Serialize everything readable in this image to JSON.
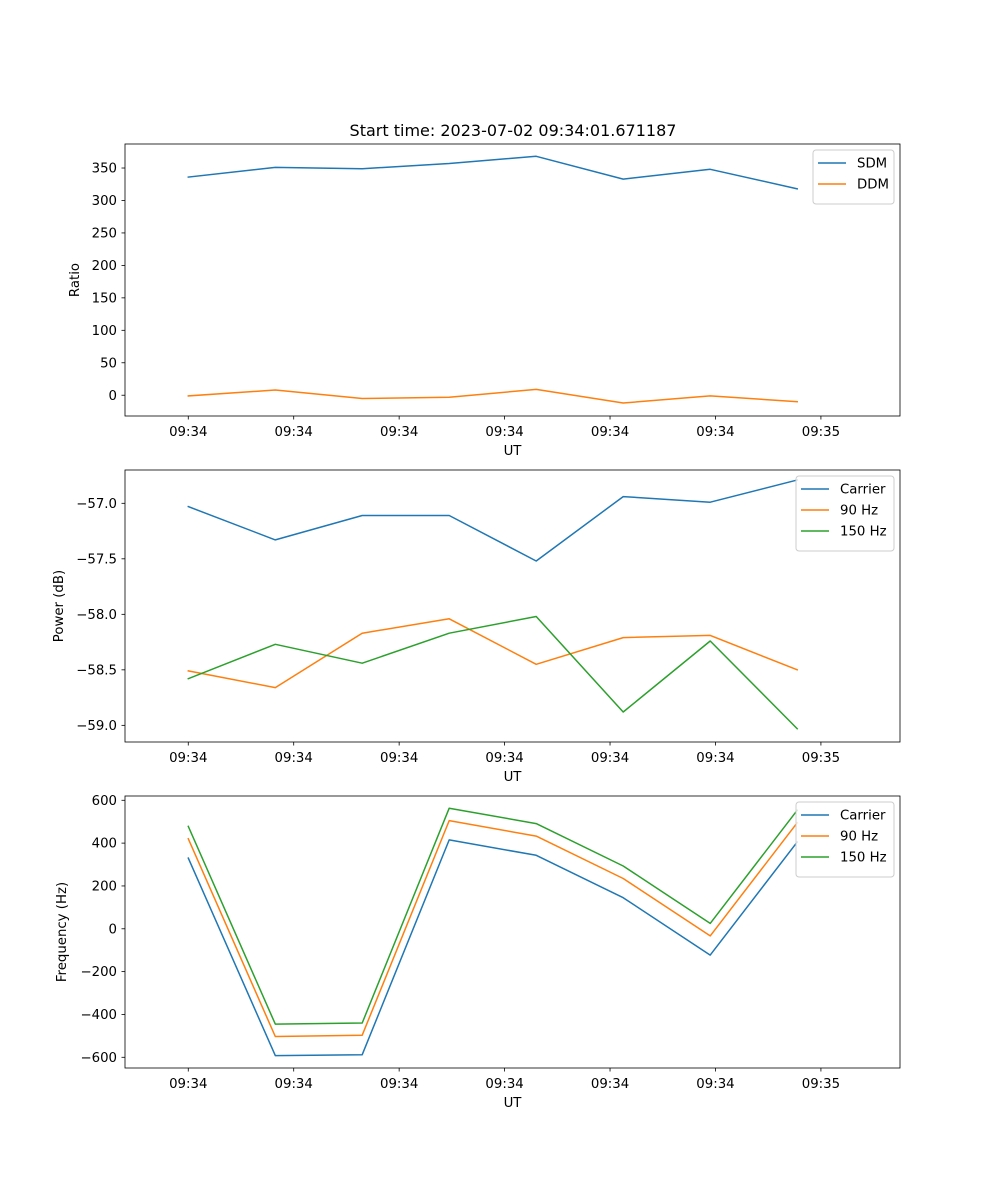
{
  "figure_title": "Start time: 2023-07-02 09:34:01.671187",
  "chart_data": [
    {
      "type": "line",
      "title": "Start time: 2023-07-02 09:34:01.671187",
      "xlabel": "UT",
      "ylabel": "Ratio",
      "x_tick_labels": [
        "09:34",
        "09:34",
        "09:34",
        "09:34",
        "09:34",
        "09:34",
        "09:35"
      ],
      "xlim": [
        -0.12,
        1.35
      ],
      "x": [
        0.0,
        0.165,
        0.33,
        0.495,
        0.66,
        0.825,
        0.99,
        1.155
      ],
      "ylim": [
        -32,
        387
      ],
      "y_ticks": [
        0,
        50,
        100,
        150,
        200,
        250,
        300,
        350
      ],
      "y_tick_labels": [
        "0",
        "50",
        "100",
        "150",
        "200",
        "250",
        "300",
        "350"
      ],
      "legend_position": "top-right",
      "series": [
        {
          "name": "SDM",
          "color": "#1f77b4",
          "values": [
            336,
            351,
            349,
            357,
            368,
            333,
            348,
            318
          ]
        },
        {
          "name": "DDM",
          "color": "#ff7f0e",
          "values": [
            -1,
            8,
            -5,
            -3,
            9,
            -12,
            -1,
            -10
          ]
        }
      ]
    },
    {
      "type": "line",
      "title": "",
      "xlabel": "UT",
      "ylabel": "Power (dB)",
      "x_tick_labels": [
        "09:34",
        "09:34",
        "09:34",
        "09:34",
        "09:34",
        "09:34",
        "09:35"
      ],
      "xlim": [
        -0.12,
        1.35
      ],
      "x": [
        0.0,
        0.165,
        0.33,
        0.495,
        0.66,
        0.825,
        0.99,
        1.155
      ],
      "ylim": [
        -59.15,
        -56.7
      ],
      "y_ticks": [
        -59.0,
        -58.5,
        -58.0,
        -57.5,
        -57.0
      ],
      "y_tick_labels": [
        "−59.0",
        "−58.5",
        "−58.0",
        "−57.5",
        "−57.0"
      ],
      "legend_position": "top-right",
      "series": [
        {
          "name": "Carrier",
          "color": "#1f77b4",
          "values": [
            -57.03,
            -57.33,
            -57.11,
            -57.11,
            -57.52,
            -56.94,
            -56.99,
            -56.79
          ]
        },
        {
          "name": "90 Hz",
          "color": "#ff7f0e",
          "values": [
            -58.51,
            -58.66,
            -58.17,
            -58.04,
            -58.45,
            -58.21,
            -58.19,
            -58.5
          ]
        },
        {
          "name": "150 Hz",
          "color": "#2ca02c",
          "values": [
            -58.58,
            -58.27,
            -58.44,
            -58.17,
            -58.02,
            -58.88,
            -58.24,
            -59.03
          ]
        }
      ]
    },
    {
      "type": "line",
      "title": "",
      "xlabel": "UT",
      "ylabel": "Frequency (Hz)",
      "x_tick_labels": [
        "09:34",
        "09:34",
        "09:34",
        "09:34",
        "09:34",
        "09:34",
        "09:35"
      ],
      "xlim": [
        -0.12,
        1.35
      ],
      "x": [
        0.0,
        0.165,
        0.33,
        0.495,
        0.66,
        0.825,
        0.99,
        1.155
      ],
      "ylim": [
        -650,
        620
      ],
      "y_ticks": [
        -600,
        -400,
        -200,
        0,
        200,
        400,
        600
      ],
      "y_tick_labels": [
        "−600",
        "−400",
        "−200",
        "0",
        "200",
        "400",
        "600"
      ],
      "legend_position": "top-right",
      "series": [
        {
          "name": "Carrier",
          "color": "#1f77b4",
          "values": [
            330,
            -592,
            -588,
            415,
            343,
            145,
            -123,
            405
          ]
        },
        {
          "name": "90 Hz",
          "color": "#ff7f0e",
          "values": [
            420,
            -503,
            -497,
            505,
            433,
            235,
            -33,
            495
          ]
        },
        {
          "name": "150 Hz",
          "color": "#2ca02c",
          "values": [
            478,
            -445,
            -440,
            563,
            491,
            293,
            25,
            553
          ]
        }
      ]
    }
  ]
}
